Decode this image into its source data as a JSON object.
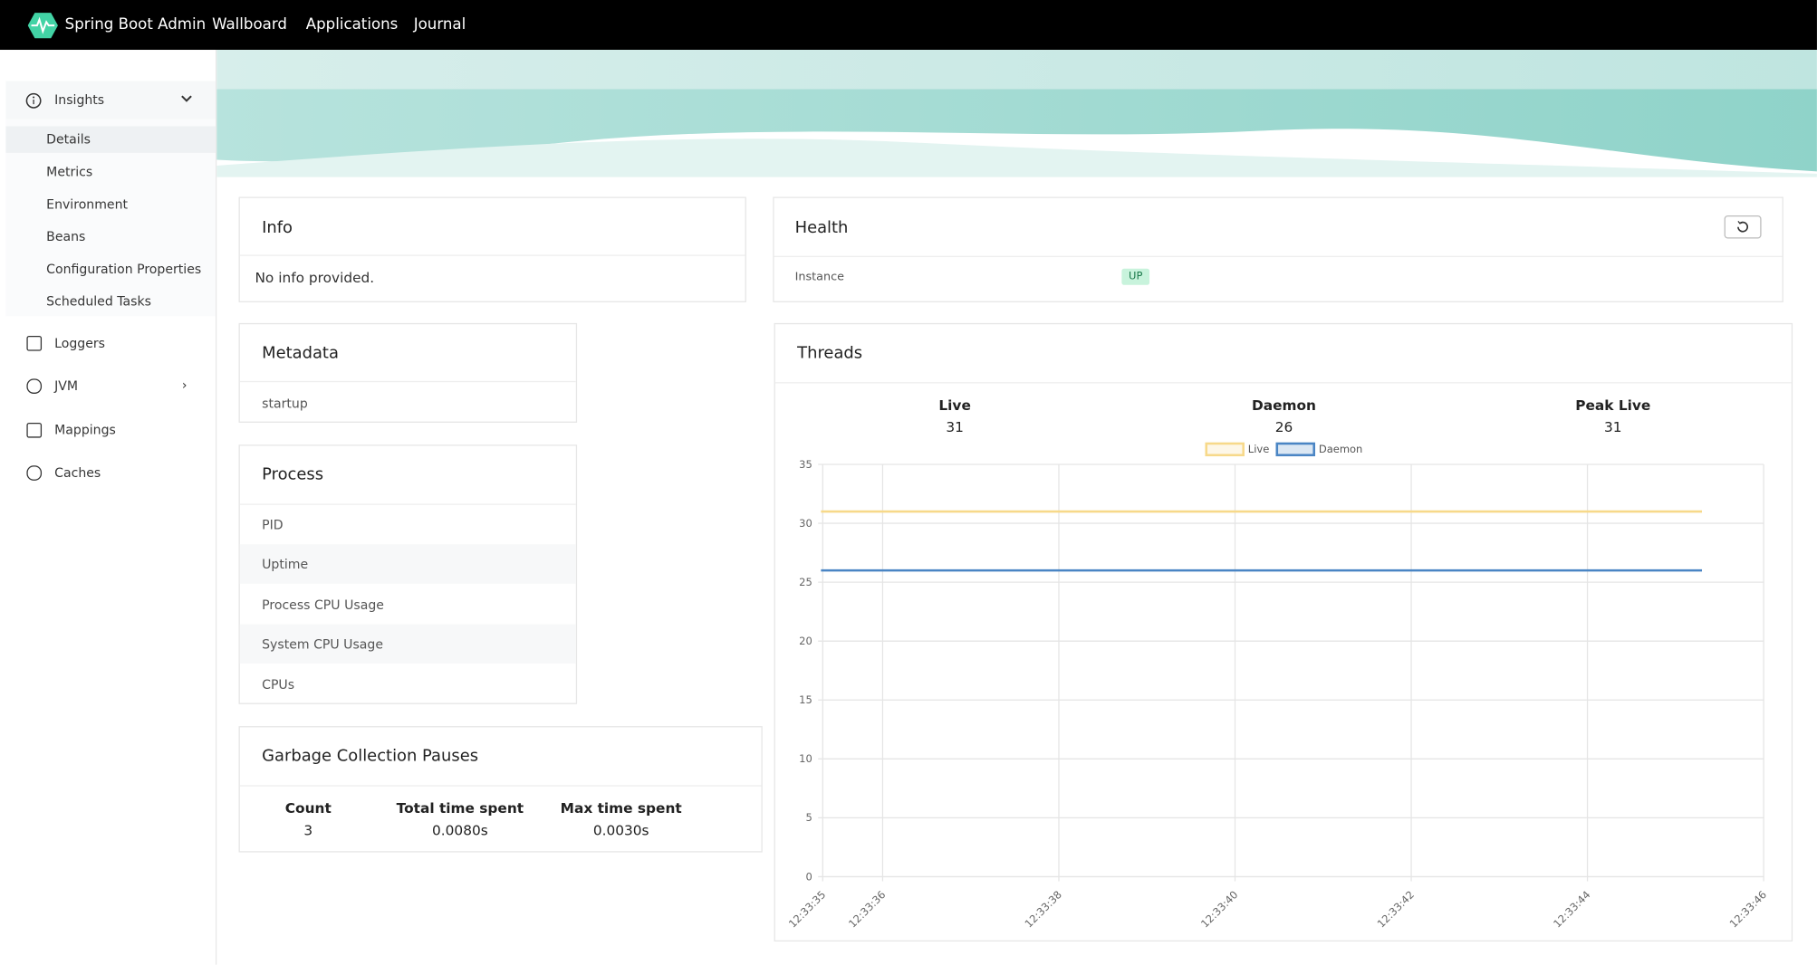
{
  "nav": {
    "brand": "Spring Boot Admin",
    "links": [
      "Wallboard",
      "Applications",
      "Journal"
    ]
  },
  "sidebar": {
    "insights": "Insights",
    "insights_items": [
      "Details",
      "Metrics",
      "Environment",
      "Beans",
      "Configuration Properties",
      "Scheduled Tasks"
    ],
    "other": [
      "Loggers",
      "JVM",
      "Mappings",
      "Caches"
    ]
  },
  "info": {
    "title": "Info",
    "text": "No info provided."
  },
  "health": {
    "title": "Health",
    "label": "Instance",
    "status": "UP"
  },
  "metadata": {
    "title": "Metadata",
    "rows": [
      "startup"
    ]
  },
  "process": {
    "title": "Process",
    "rows": [
      "PID",
      "Uptime",
      "Process CPU Usage",
      "System CPU Usage",
      "CPUs"
    ]
  },
  "gc": {
    "title": "Garbage Collection Pauses",
    "stats": [
      {
        "label": "Count",
        "value": "3"
      },
      {
        "label": "Total time spent",
        "value": "0.0080s"
      },
      {
        "label": "Max time spent",
        "value": "0.0030s"
      }
    ]
  },
  "threads": {
    "title": "Threads",
    "stats": [
      {
        "label": "Live",
        "value": "31"
      },
      {
        "label": "Daemon",
        "value": "26"
      },
      {
        "label": "Peak Live",
        "value": "31"
      }
    ]
  },
  "chart_data": {
    "type": "line",
    "x": [
      35.3,
      36.3,
      37.3,
      38.3,
      39.3,
      40.3,
      41.3,
      42.3,
      43.3,
      44.3,
      45.3
    ],
    "series": [
      {
        "name": "Live",
        "color": "#f7d98a",
        "values": [
          31,
          31,
          31,
          31,
          31,
          31,
          31,
          31,
          31,
          31,
          31
        ]
      },
      {
        "name": "Daemon",
        "color": "#4a85c4",
        "values": [
          26,
          26,
          26,
          26,
          26,
          26,
          26,
          26,
          26,
          26,
          26
        ]
      }
    ],
    "xlim": [
      35.32,
      46
    ],
    "xticks": [
      {
        "value": 35.32,
        "label": "12:33:35"
      },
      {
        "value": 36,
        "label": "12:33:36"
      },
      {
        "value": 38,
        "label": "12:33:38"
      },
      {
        "value": 40,
        "label": "12:33:40"
      },
      {
        "value": 42,
        "label": "12:33:42"
      },
      {
        "value": 44,
        "label": "12:33:44"
      },
      {
        "value": 46,
        "label": "12:33:46"
      }
    ],
    "ylim": [
      0,
      35
    ],
    "yticks": [
      0,
      5,
      10,
      15,
      20,
      25,
      30,
      35
    ],
    "grid": true,
    "legend": "top"
  }
}
